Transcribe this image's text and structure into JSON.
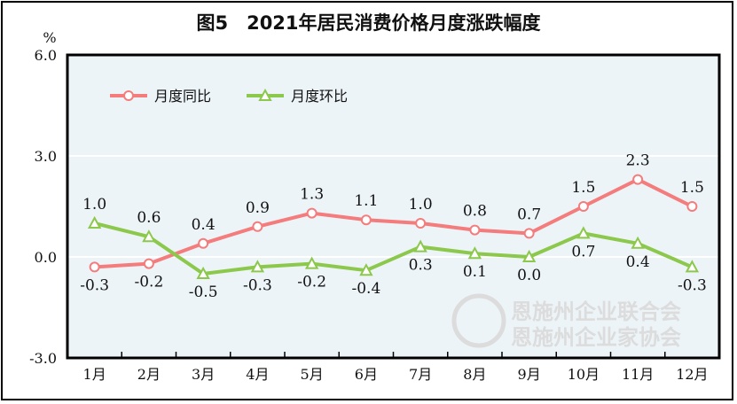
{
  "chart_data": {
    "type": "line",
    "title": "图5　2021年居民消费价格月度涨跌幅度",
    "ylabel": "%",
    "ylim": [
      -3.0,
      6.0
    ],
    "yticks": [
      "6.0",
      "3.0",
      "0.0",
      "-3.0"
    ],
    "ytick_values": [
      6.0,
      3.0,
      0.0,
      -3.0
    ],
    "categories": [
      "1月",
      "2月",
      "3月",
      "4月",
      "5月",
      "6月",
      "7月",
      "8月",
      "9月",
      "10月",
      "11月",
      "12月"
    ],
    "grid": true,
    "legend_position": "top-left",
    "series": [
      {
        "name": "月度同比",
        "color": "#f47c7c",
        "marker": "circle",
        "values": [
          -0.3,
          -0.2,
          0.4,
          0.9,
          1.3,
          1.1,
          1.0,
          0.8,
          0.7,
          1.5,
          2.3,
          1.5
        ]
      },
      {
        "name": "月度环比",
        "color": "#8cc84b",
        "marker": "triangle",
        "values": [
          1.0,
          0.6,
          -0.5,
          -0.3,
          -0.2,
          -0.4,
          0.3,
          0.1,
          0.0,
          0.7,
          0.4,
          -0.3
        ]
      }
    ]
  },
  "watermark": [
    "恩施州企业联合会",
    "恩施州企业家协会"
  ]
}
